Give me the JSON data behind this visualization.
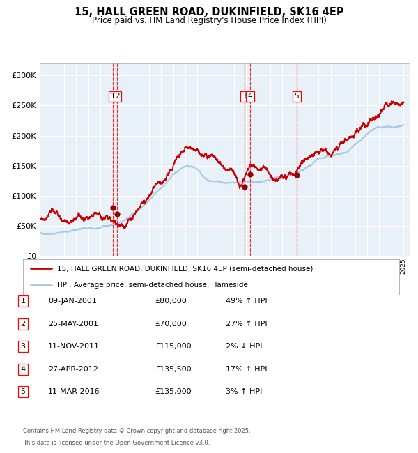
{
  "title": "15, HALL GREEN ROAD, DUKINFIELD, SK16 4EP",
  "subtitle": "Price paid vs. HM Land Registry's House Price Index (HPI)",
  "legend_line1": "15, HALL GREEN ROAD, DUKINFIELD, SK16 4EP (semi-detached house)",
  "legend_line2": "HPI: Average price, semi-detached house,  Tameside",
  "footer_line1": "Contains HM Land Registry data © Crown copyright and database right 2025.",
  "footer_line2": "This data is licensed under the Open Government Licence v3.0.",
  "hpi_color": "#A8C8E8",
  "price_color": "#CC0000",
  "marker_color": "#990000",
  "background_color": "#E8F0F8",
  "ylim": [
    0,
    320000
  ],
  "yticks": [
    0,
    50000,
    100000,
    150000,
    200000,
    250000,
    300000
  ],
  "ytick_labels": [
    "£0",
    "£50K",
    "£100K",
    "£150K",
    "£200K",
    "£250K",
    "£300K"
  ],
  "sale_events": [
    {
      "num": 1,
      "date_num": 2001.03,
      "price": 80000,
      "date_str": "09-JAN-2001",
      "price_str": "£80,000",
      "rel": "49% ↑ HPI"
    },
    {
      "num": 2,
      "date_num": 2001.4,
      "price": 70000,
      "date_str": "25-MAY-2001",
      "price_str": "£70,000",
      "rel": "27% ↑ HPI"
    },
    {
      "num": 3,
      "date_num": 2011.87,
      "price": 115000,
      "date_str": "11-NOV-2011",
      "price_str": "£115,000",
      "rel": "2% ↓ HPI"
    },
    {
      "num": 4,
      "date_num": 2012.33,
      "price": 135500,
      "date_str": "27-APR-2012",
      "price_str": "£135,500",
      "rel": "17% ↑ HPI"
    },
    {
      "num": 5,
      "date_num": 2016.19,
      "price": 135000,
      "date_str": "11-MAR-2016",
      "price_str": "£135,000",
      "rel": "3% ↑ HPI"
    }
  ],
  "vlines": [
    2001.03,
    2001.4,
    2011.87,
    2012.33,
    2016.19
  ],
  "label_boxes": [
    {
      "x": 2001.03,
      "label": "1"
    },
    {
      "x": 2001.4,
      "label": "2"
    },
    {
      "x": 2011.87,
      "label": "3"
    },
    {
      "x": 2012.33,
      "label": "4"
    },
    {
      "x": 2016.19,
      "label": "5"
    }
  ]
}
